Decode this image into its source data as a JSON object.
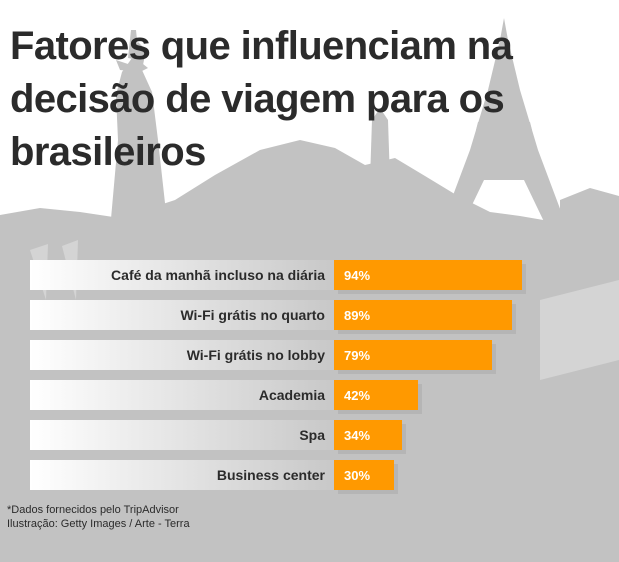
{
  "title": "Fatores que influenciam na decisão de viagem para os brasileiros",
  "colors": {
    "bar": "#ff9900",
    "bar_shadow": "#b0b0b0",
    "label_bg_start": "#ffffff",
    "label_bg_end": "#c8c8c8",
    "background_silhouette": "#c2c2c2",
    "title_text": "#2b2b2b",
    "value_text": "#ffffff"
  },
  "chart_data": {
    "type": "bar",
    "orientation": "horizontal",
    "title": "Fatores que influenciam na decisão de viagem para os brasileiros",
    "categories": [
      "Café da manhã incluso na diária",
      "Wi-Fi grátis no quarto",
      "Wi-Fi grátis no lobby",
      "Academia",
      "Spa",
      "Business center"
    ],
    "values": [
      94,
      89,
      79,
      42,
      34,
      30
    ],
    "value_labels": [
      "94%",
      "89%",
      "79%",
      "42%",
      "34%",
      "30%"
    ],
    "unit": "%",
    "xlim": [
      0,
      100
    ],
    "xlabel": "",
    "ylabel": "",
    "grid": false,
    "legend": "none"
  },
  "footnote": {
    "source": "*Dados fornecidos pelo TripAdvisor",
    "credit": "Ilustração: Getty Images / Arte - Terra"
  }
}
